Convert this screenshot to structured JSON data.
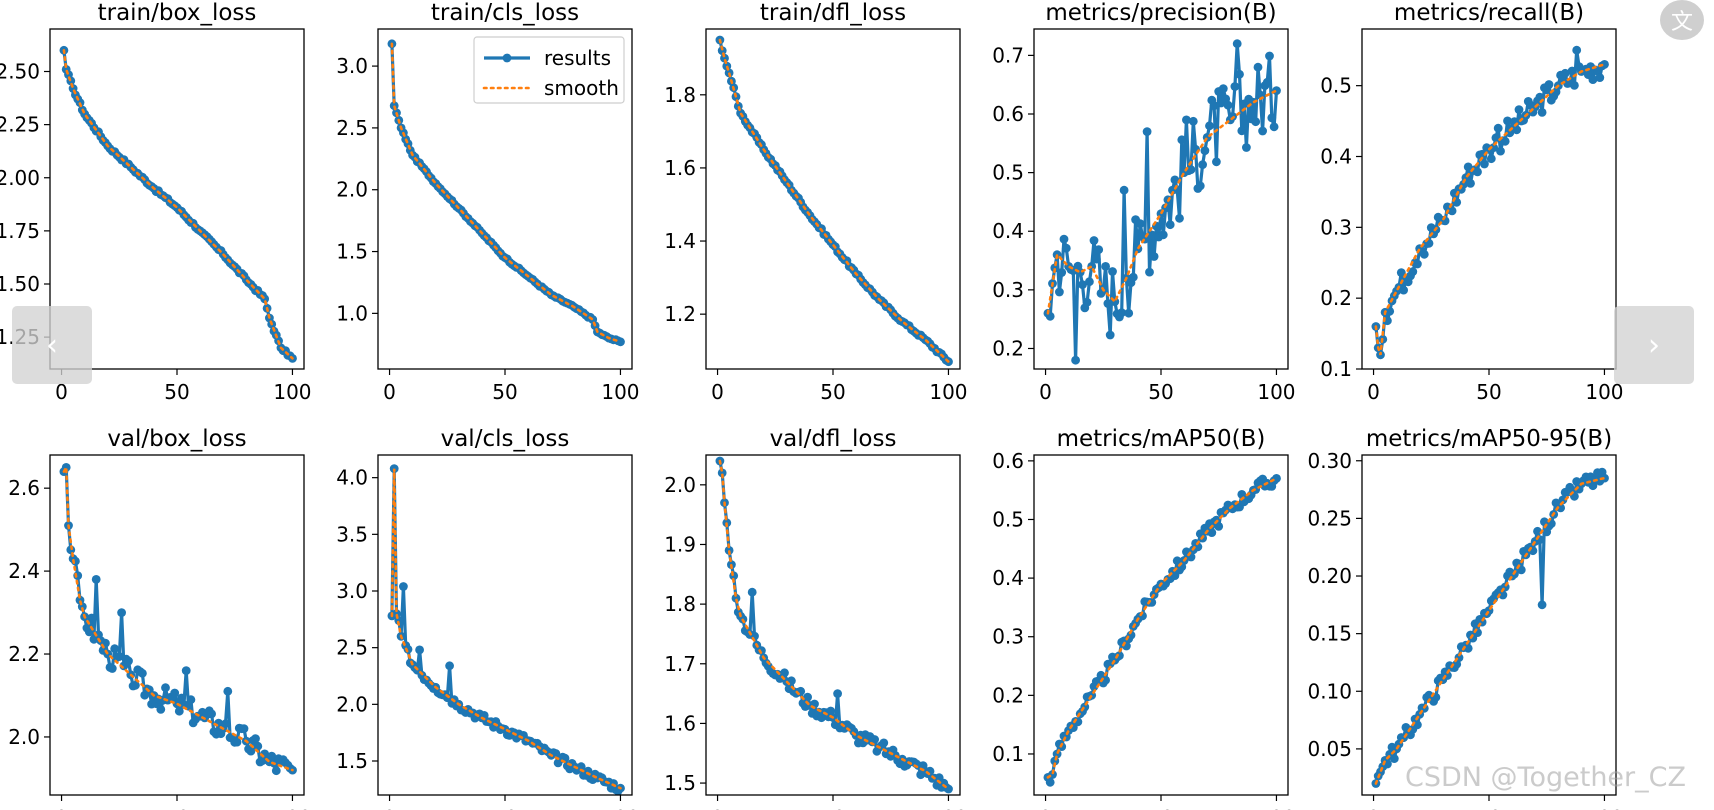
{
  "chart_data": [
    {
      "type": "line",
      "title": "train/box_loss",
      "xlim": [
        -5,
        105
      ],
      "ylim": [
        1.1,
        2.7
      ],
      "xticks": [
        0,
        50,
        100
      ],
      "yticks": [
        2.5,
        2.25,
        2.0,
        1.75,
        1.5,
        1.25
      ],
      "ytick_labels": [
        "2.50",
        "2.25",
        "2.00",
        "1.75",
        "1.50",
        "1.25"
      ],
      "anchors": [
        [
          1,
          2.6
        ],
        [
          2,
          2.51
        ],
        [
          5,
          2.42
        ],
        [
          10,
          2.3
        ],
        [
          20,
          2.15
        ],
        [
          30,
          2.05
        ],
        [
          40,
          1.95
        ],
        [
          50,
          1.86
        ],
        [
          60,
          1.75
        ],
        [
          70,
          1.64
        ],
        [
          80,
          1.52
        ],
        [
          88,
          1.43
        ],
        [
          90,
          1.34
        ],
        [
          95,
          1.2
        ],
        [
          100,
          1.15
        ]
      ],
      "noise": 0.007,
      "smooth_shift": 0
    },
    {
      "type": "line",
      "title": "train/cls_loss",
      "xlim": [
        -5,
        105
      ],
      "ylim": [
        0.55,
        3.3
      ],
      "xticks": [
        0,
        50,
        100
      ],
      "yticks": [
        3.0,
        2.5,
        2.0,
        1.5,
        1.0
      ],
      "ytick_labels": [
        "3.0",
        "2.5",
        "2.0",
        "1.5",
        "1.0"
      ],
      "legend": [
        "results",
        "smooth"
      ],
      "anchors": [
        [
          1,
          3.18
        ],
        [
          2,
          2.68
        ],
        [
          5,
          2.5
        ],
        [
          10,
          2.28
        ],
        [
          20,
          2.05
        ],
        [
          30,
          1.85
        ],
        [
          40,
          1.65
        ],
        [
          50,
          1.45
        ],
        [
          60,
          1.3
        ],
        [
          70,
          1.15
        ],
        [
          80,
          1.05
        ],
        [
          88,
          0.95
        ],
        [
          90,
          0.85
        ],
        [
          95,
          0.8
        ],
        [
          100,
          0.77
        ]
      ],
      "noise": 0.007,
      "smooth_shift": 0
    },
    {
      "type": "line",
      "title": "train/dfl_loss",
      "xlim": [
        -5,
        105
      ],
      "ylim": [
        1.05,
        1.98
      ],
      "xticks": [
        0,
        50,
        100
      ],
      "yticks": [
        1.8,
        1.6,
        1.4,
        1.2
      ],
      "ytick_labels": [
        "1.8",
        "1.6",
        "1.4",
        "1.2"
      ],
      "anchors": [
        [
          1,
          1.95
        ],
        [
          3,
          1.9
        ],
        [
          5,
          1.86
        ],
        [
          10,
          1.75
        ],
        [
          20,
          1.65
        ],
        [
          30,
          1.56
        ],
        [
          40,
          1.47
        ],
        [
          50,
          1.39
        ],
        [
          60,
          1.31
        ],
        [
          70,
          1.24
        ],
        [
          80,
          1.18
        ],
        [
          90,
          1.13
        ],
        [
          100,
          1.07
        ]
      ],
      "noise": 0.004,
      "smooth_shift": 0
    },
    {
      "type": "line",
      "title": "metrics/precision(B)",
      "xlim": [
        -5,
        105
      ],
      "ylim": [
        0.165,
        0.745
      ],
      "xticks": [
        0,
        50,
        100
      ],
      "yticks": [
        0.7,
        0.6,
        0.5,
        0.4,
        0.3,
        0.2
      ],
      "ytick_labels": [
        "0.7",
        "0.6",
        "0.5",
        "0.4",
        "0.3",
        "0.2"
      ],
      "anchors": [
        [
          1,
          0.26
        ],
        [
          5,
          0.36
        ],
        [
          10,
          0.34
        ],
        [
          15,
          0.33
        ],
        [
          20,
          0.34
        ],
        [
          25,
          0.3
        ],
        [
          30,
          0.28
        ],
        [
          35,
          0.32
        ],
        [
          40,
          0.37
        ],
        [
          50,
          0.43
        ],
        [
          60,
          0.5
        ],
        [
          70,
          0.56
        ],
        [
          80,
          0.59
        ],
        [
          90,
          0.62
        ],
        [
          100,
          0.64
        ]
      ],
      "noise": 0.07,
      "smooth_shift": 0,
      "spikes": [
        [
          13,
          0.18
        ],
        [
          34,
          0.47
        ],
        [
          44,
          0.57
        ],
        [
          61,
          0.59
        ],
        [
          83,
          0.72
        ]
      ]
    },
    {
      "type": "line",
      "title": "metrics/recall(B)",
      "xlim": [
        -5,
        105
      ],
      "ylim": [
        0.1,
        0.58
      ],
      "xticks": [
        0,
        50,
        100
      ],
      "yticks": [
        0.5,
        0.4,
        0.3,
        0.2,
        0.1
      ],
      "ytick_labels": [
        "0.5",
        "0.4",
        "0.3",
        "0.2",
        "0.1"
      ],
      "anchors": [
        [
          1,
          0.16
        ],
        [
          2,
          0.13
        ],
        [
          3,
          0.12
        ],
        [
          5,
          0.18
        ],
        [
          10,
          0.21
        ],
        [
          20,
          0.27
        ],
        [
          30,
          0.31
        ],
        [
          40,
          0.37
        ],
        [
          50,
          0.41
        ],
        [
          60,
          0.44
        ],
        [
          70,
          0.47
        ],
        [
          80,
          0.5
        ],
        [
          90,
          0.52
        ],
        [
          100,
          0.53
        ]
      ],
      "noise": 0.018,
      "smooth_shift": 0,
      "spikes": [
        [
          54,
          0.44
        ],
        [
          88,
          0.55
        ]
      ]
    },
    {
      "type": "line",
      "title": "val/box_loss",
      "xlim": [
        -5,
        105
      ],
      "ylim": [
        1.86,
        2.68
      ],
      "xticks": [
        0,
        50,
        100
      ],
      "yticks": [
        2.6,
        2.4,
        2.2,
        2.0
      ],
      "ytick_labels": [
        "2.6",
        "2.4",
        "2.2",
        "2.0"
      ],
      "anchors": [
        [
          1,
          2.64
        ],
        [
          2,
          2.65
        ],
        [
          3,
          2.51
        ],
        [
          5,
          2.43
        ],
        [
          8,
          2.33
        ],
        [
          10,
          2.29
        ],
        [
          20,
          2.2
        ],
        [
          30,
          2.15
        ],
        [
          40,
          2.1
        ],
        [
          50,
          2.08
        ],
        [
          60,
          2.05
        ],
        [
          70,
          2.02
        ],
        [
          80,
          1.99
        ],
        [
          90,
          1.94
        ],
        [
          100,
          1.92
        ]
      ],
      "noise": 0.03,
      "smooth_shift": 0,
      "spikes": [
        [
          15,
          2.38
        ],
        [
          26,
          2.3
        ],
        [
          54,
          2.16
        ],
        [
          72,
          2.11
        ]
      ]
    },
    {
      "type": "line",
      "title": "val/cls_loss",
      "xlim": [
        -5,
        105
      ],
      "ylim": [
        1.2,
        4.2
      ],
      "xticks": [
        0,
        50,
        100
      ],
      "yticks": [
        4.0,
        3.5,
        3.0,
        2.5,
        2.0,
        1.5
      ],
      "ytick_labels": [
        "4.0",
        "3.5",
        "3.0",
        "2.5",
        "2.0",
        "1.5"
      ],
      "anchors": [
        [
          1,
          2.78
        ],
        [
          2,
          4.08
        ],
        [
          3,
          2.8
        ],
        [
          5,
          2.6
        ],
        [
          10,
          2.35
        ],
        [
          20,
          2.15
        ],
        [
          30,
          2.0
        ],
        [
          40,
          1.88
        ],
        [
          50,
          1.78
        ],
        [
          60,
          1.68
        ],
        [
          70,
          1.55
        ],
        [
          80,
          1.45
        ],
        [
          90,
          1.35
        ],
        [
          100,
          1.26
        ]
      ],
      "noise": 0.04,
      "smooth_shift": 0,
      "spikes": [
        [
          6,
          3.04
        ],
        [
          13,
          2.48
        ],
        [
          26,
          2.34
        ]
      ]
    },
    {
      "type": "line",
      "title": "val/dfl_loss",
      "xlim": [
        -5,
        105
      ],
      "ylim": [
        1.48,
        2.05
      ],
      "xticks": [
        0,
        50,
        100
      ],
      "yticks": [
        2.0,
        1.9,
        1.8,
        1.7,
        1.6,
        1.5
      ],
      "ytick_labels": [
        "2.0",
        "1.9",
        "1.8",
        "1.7",
        "1.6",
        "1.5"
      ],
      "anchors": [
        [
          1,
          2.04
        ],
        [
          2,
          2.02
        ],
        [
          3,
          1.97
        ],
        [
          5,
          1.89
        ],
        [
          8,
          1.81
        ],
        [
          10,
          1.78
        ],
        [
          20,
          1.71
        ],
        [
          30,
          1.67
        ],
        [
          40,
          1.63
        ],
        [
          50,
          1.61
        ],
        [
          60,
          1.58
        ],
        [
          70,
          1.56
        ],
        [
          80,
          1.54
        ],
        [
          90,
          1.52
        ],
        [
          100,
          1.49
        ]
      ],
      "noise": 0.012,
      "smooth_shift": 0,
      "spikes": [
        [
          15,
          1.82
        ],
        [
          52,
          1.65
        ]
      ]
    },
    {
      "type": "line",
      "title": "metrics/mAP50(B)",
      "xlim": [
        -5,
        105
      ],
      "ylim": [
        0.03,
        0.61
      ],
      "xticks": [
        0,
        50,
        100
      ],
      "yticks": [
        0.6,
        0.5,
        0.4,
        0.3,
        0.2,
        0.1
      ],
      "ytick_labels": [
        "0.6",
        "0.5",
        "0.4",
        "0.3",
        "0.2",
        "0.1"
      ],
      "anchors": [
        [
          1,
          0.06
        ],
        [
          3,
          0.065
        ],
        [
          5,
          0.1
        ],
        [
          10,
          0.14
        ],
        [
          20,
          0.2
        ],
        [
          30,
          0.26
        ],
        [
          40,
          0.33
        ],
        [
          50,
          0.39
        ],
        [
          60,
          0.43
        ],
        [
          70,
          0.48
        ],
        [
          80,
          0.52
        ],
        [
          90,
          0.55
        ],
        [
          100,
          0.57
        ]
      ],
      "noise": 0.012,
      "smooth_shift": 0
    },
    {
      "type": "line",
      "title": "metrics/mAP50-95(B)",
      "xlim": [
        -5,
        105
      ],
      "ylim": [
        0.01,
        0.305
      ],
      "xticks": [
        0,
        50,
        100
      ],
      "yticks": [
        0.3,
        0.25,
        0.2,
        0.15,
        0.1,
        0.05
      ],
      "ytick_labels": [
        "0.30",
        "0.25",
        "0.20",
        "0.15",
        "0.10",
        "0.05"
      ],
      "anchors": [
        [
          1,
          0.02
        ],
        [
          3,
          0.03
        ],
        [
          5,
          0.04
        ],
        [
          10,
          0.05
        ],
        [
          20,
          0.08
        ],
        [
          30,
          0.11
        ],
        [
          40,
          0.14
        ],
        [
          50,
          0.17
        ],
        [
          60,
          0.2
        ],
        [
          70,
          0.23
        ],
        [
          80,
          0.26
        ],
        [
          90,
          0.28
        ],
        [
          100,
          0.285
        ]
      ],
      "noise": 0.007,
      "smooth_shift": 0,
      "spikes": [
        [
          73,
          0.175
        ]
      ]
    }
  ],
  "colors": {
    "results": "#1f77b4",
    "smooth": "#ff7f0e",
    "axis": "#000000"
  },
  "ui": {
    "prev_label": "‹",
    "next_label": "›",
    "translate_label": "文",
    "watermark": "CSDN @Together_CZ"
  }
}
